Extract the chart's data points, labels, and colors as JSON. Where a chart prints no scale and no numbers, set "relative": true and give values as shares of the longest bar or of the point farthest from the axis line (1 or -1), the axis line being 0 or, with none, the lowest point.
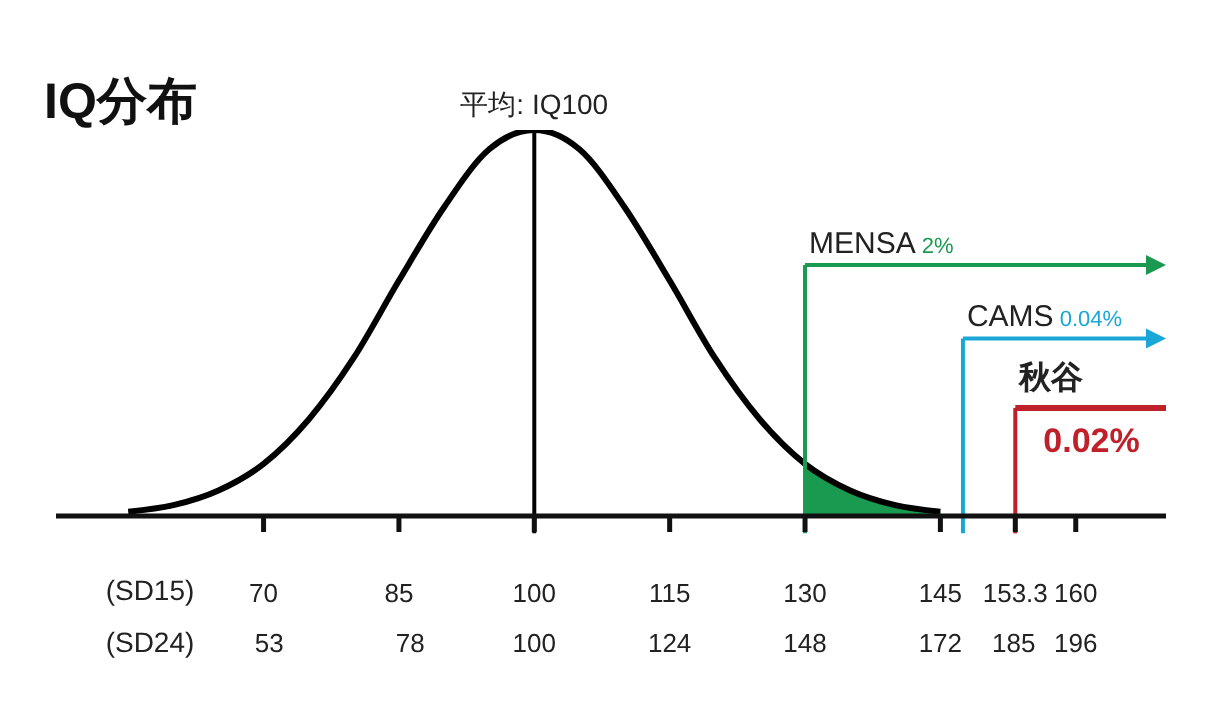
{
  "chart_data": {
    "type": "line",
    "title": "IQ分布",
    "relative": true,
    "xlabel": "(SD15)",
    "x2label": "(SD24)",
    "xlim": [
      47,
      170
    ],
    "xticks": [
      70,
      85,
      100,
      115,
      130,
      145,
      153.3,
      160
    ],
    "x2lim": [
      15.2,
      212
    ],
    "x2ticks": [
      53,
      78,
      100,
      124,
      148,
      172,
      185,
      196
    ],
    "series": [
      {
        "type": "line",
        "color": "#000000",
        "x": [
          55,
          60,
          65,
          70,
          75,
          80,
          85,
          90,
          95,
          100,
          105,
          110,
          115,
          120,
          125,
          130,
          135,
          140,
          145
        ],
        "values": [
          0.011,
          0.028,
          0.066,
          0.135,
          0.25,
          0.41,
          0.61,
          0.8,
          0.95,
          1,
          0.95,
          0.8,
          0.61,
          0.41,
          0.25,
          0.135,
          0.066,
          0.028,
          0.011
        ]
      },
      {
        "type": "area",
        "color": "#1a9a50",
        "x": [
          130,
          135,
          140,
          145
        ],
        "values": [
          0.135,
          0.066,
          0.028,
          0.011
        ]
      }
    ],
    "ref_lines": [
      {
        "axis": "x",
        "value": 100,
        "label": "平均: IQ100",
        "color": "#000000"
      },
      {
        "axis": "x",
        "value": 130,
        "label": "MENSA 2%",
        "color": "#1a9a50"
      },
      {
        "axis": "x",
        "value": 147.5,
        "label": "CAMS 0.04%",
        "color": "#1aa7d8"
      },
      {
        "axis": "x",
        "value": 153.3,
        "label": "秋谷 0.02%",
        "color": "#c0202a"
      }
    ]
  }
}
